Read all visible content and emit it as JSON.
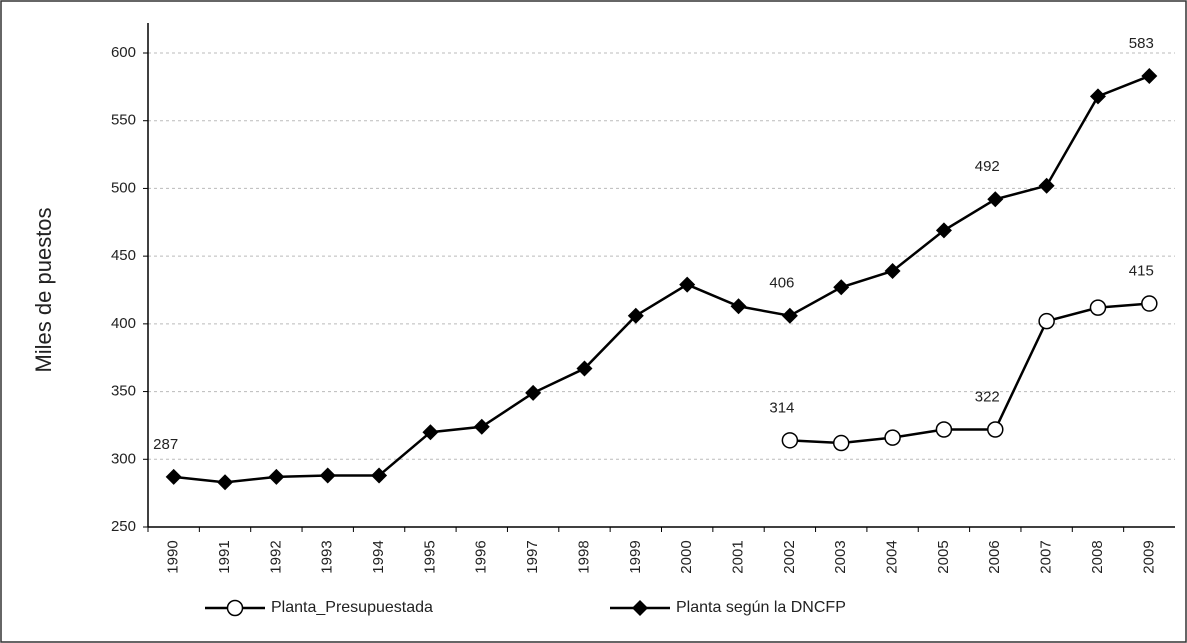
{
  "chart_data": {
    "type": "line",
    "y_label": "Miles de puestos",
    "categories": [
      "1990",
      "1991",
      "1992",
      "1993",
      "1994",
      "1995",
      "1996",
      "1997",
      "1998",
      "1999",
      "2000",
      "2001",
      "2002",
      "2003",
      "2004",
      "2005",
      "2006",
      "2007",
      "2008",
      "2009"
    ],
    "series": [
      {
        "name": "Planta_Presupuestada",
        "color": "#000000",
        "marker": "circle-open",
        "values": [
          null,
          null,
          null,
          null,
          null,
          null,
          null,
          null,
          null,
          null,
          null,
          null,
          314,
          312,
          316,
          322,
          322,
          402,
          412,
          415
        ],
        "value_labels": [
          null,
          null,
          null,
          null,
          null,
          null,
          null,
          null,
          null,
          null,
          null,
          null,
          "314",
          null,
          null,
          null,
          "322",
          null,
          null,
          "415"
        ]
      },
      {
        "name": "Planta según la DNCFP",
        "color": "#000000",
        "marker": "diamond",
        "values": [
          287,
          283,
          287,
          288,
          288,
          320,
          324,
          349,
          367,
          406,
          429,
          413,
          406,
          427,
          439,
          469,
          492,
          502,
          568,
          583
        ],
        "value_labels": [
          "287",
          null,
          null,
          null,
          null,
          null,
          null,
          null,
          null,
          null,
          null,
          null,
          "406",
          null,
          null,
          null,
          "492",
          null,
          null,
          "583"
        ]
      }
    ],
    "ylim": [
      250,
      600
    ],
    "yticks": [
      250,
      300,
      350,
      400,
      450,
      500,
      550,
      600
    ],
    "grid": true
  }
}
